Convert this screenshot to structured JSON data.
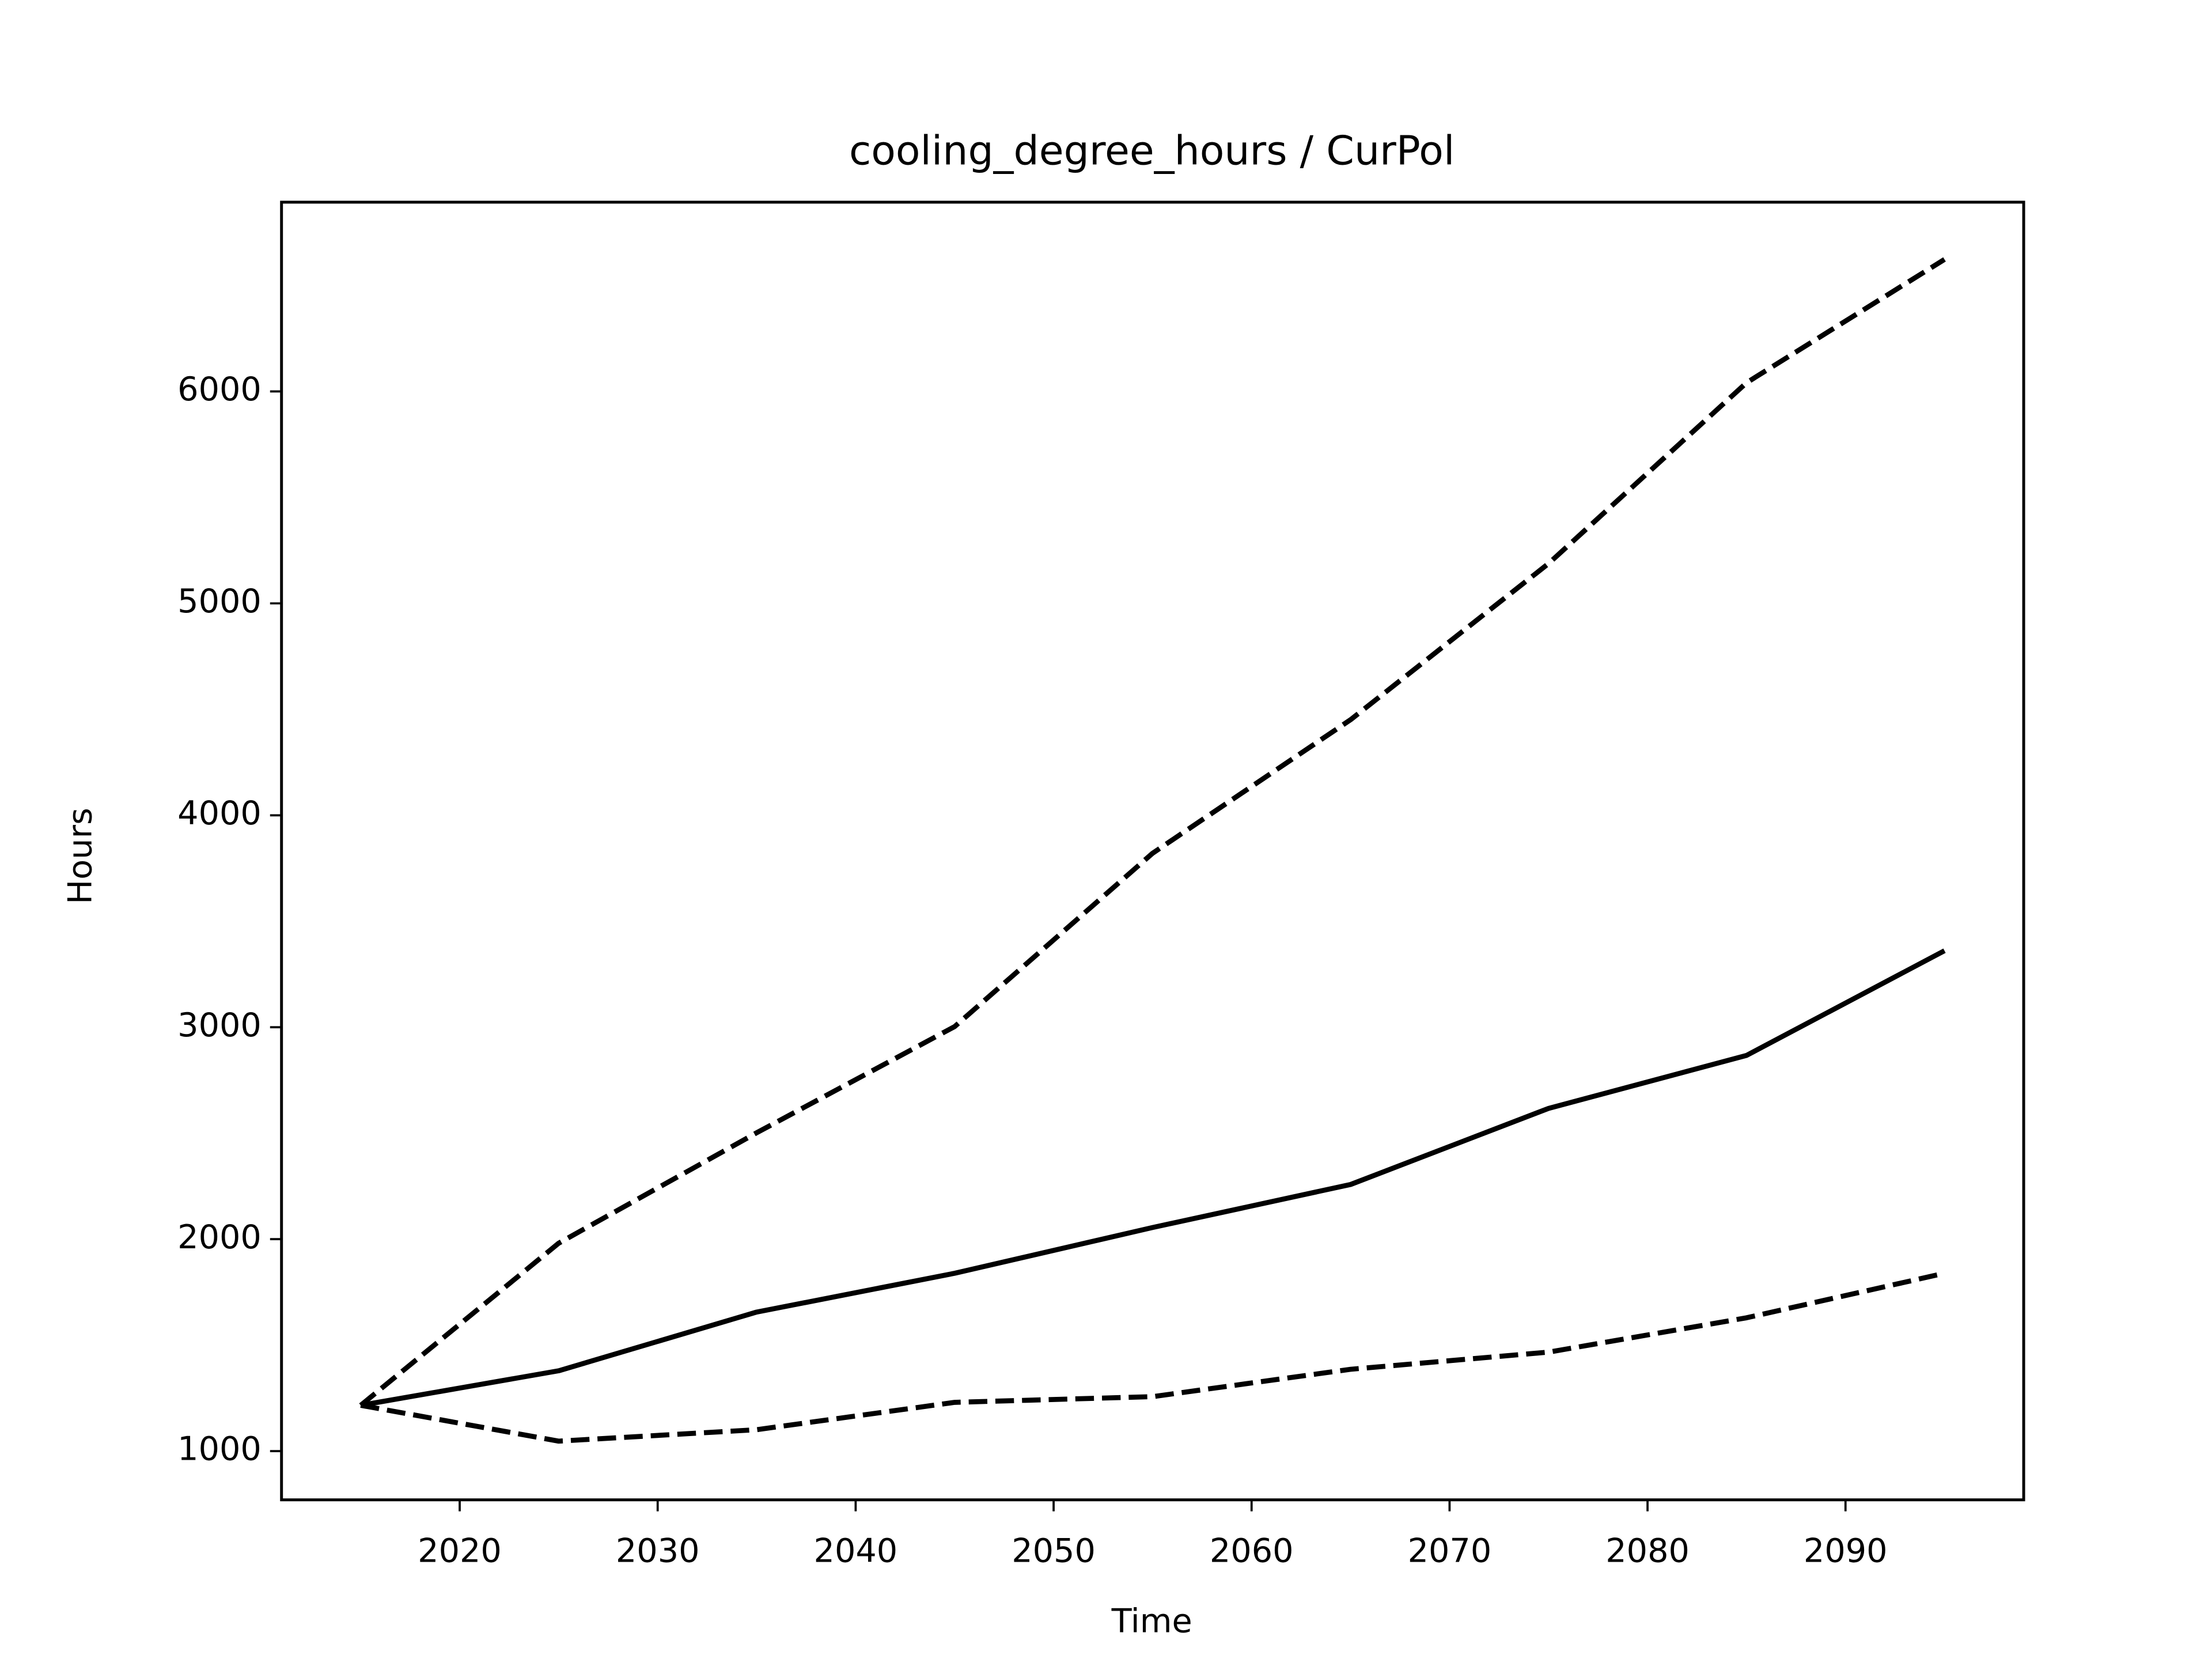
{
  "chart_data": {
    "type": "line",
    "title": "cooling_degree_hours / CurPol",
    "x_label": "Time",
    "y_label": "Hours",
    "x": [
      2015,
      2025,
      2035,
      2045,
      2055,
      2065,
      2075,
      2085,
      2095
    ],
    "series": [
      {
        "color": "#000000",
        "dash": false,
        "values": [
          1216,
          1379,
          1656,
          1839,
          2055,
          2258,
          2617,
          2867,
          3361
        ]
      },
      {
        "color": "#000000",
        "dash": true,
        "values": [
          1216,
          1981,
          2502,
          3003,
          3821,
          4451,
          5188,
          6041,
          6623
        ]
      },
      {
        "color": "#000000",
        "dash": true,
        "values": [
          1216,
          1047,
          1101,
          1230,
          1257,
          1386,
          1467,
          1629,
          1839
        ]
      }
    ],
    "xlim": [
      2011,
      2099
    ],
    "ylim": [
      770,
      6893
    ],
    "xticks": [
      2020,
      2030,
      2040,
      2050,
      2060,
      2070,
      2080,
      2090
    ],
    "yticks": [
      1000,
      2000,
      3000,
      4000,
      5000,
      6000
    ],
    "grid": false
  }
}
